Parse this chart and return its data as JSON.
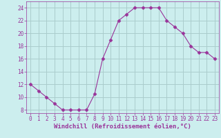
{
  "x": [
    0,
    1,
    2,
    3,
    4,
    5,
    6,
    7,
    8,
    9,
    10,
    11,
    12,
    13,
    14,
    15,
    16,
    17,
    18,
    19,
    20,
    21,
    22,
    23
  ],
  "y": [
    12,
    11,
    10,
    9,
    8,
    8,
    8,
    8,
    10.5,
    16,
    19,
    22,
    23,
    24,
    24,
    24,
    24,
    22,
    21,
    20,
    18,
    17,
    17,
    16
  ],
  "line_color": "#993399",
  "marker": "D",
  "marker_size": 2.5,
  "bg_color": "#cceeee",
  "grid_color": "#aacccc",
  "xlabel": "Windchill (Refroidissement éolien,°C)",
  "xlabel_color": "#993399",
  "ylim": [
    7.5,
    25
  ],
  "yticks": [
    8,
    10,
    12,
    14,
    16,
    18,
    20,
    22,
    24
  ],
  "xticks": [
    0,
    1,
    2,
    3,
    4,
    5,
    6,
    7,
    8,
    9,
    10,
    11,
    12,
    13,
    14,
    15,
    16,
    17,
    18,
    19,
    20,
    21,
    22,
    23
  ],
  "tick_color": "#993399",
  "tick_label_fontsize": 5.5,
  "xlabel_fontsize": 6.5
}
